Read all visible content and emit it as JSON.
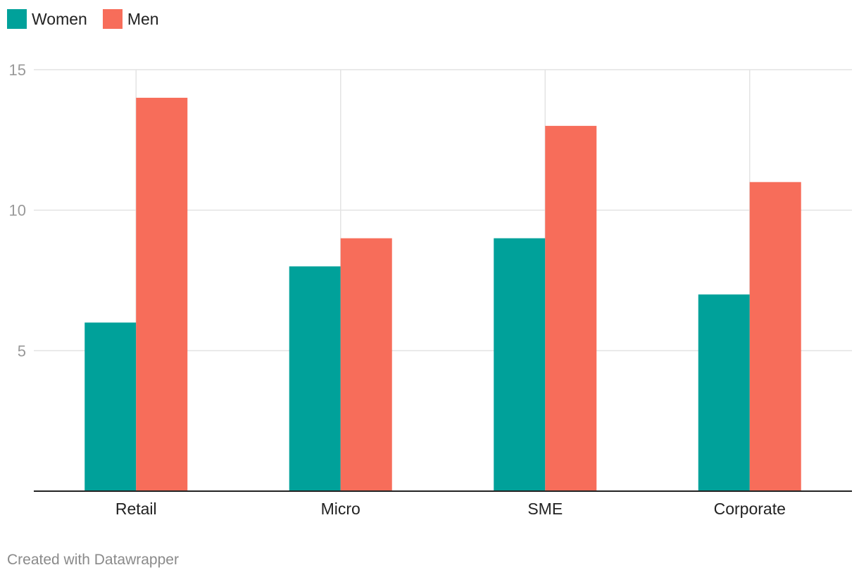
{
  "chart_data": {
    "type": "bar",
    "categories": [
      "Retail",
      "Micro",
      "SME",
      "Corporate"
    ],
    "series": [
      {
        "name": "Women",
        "values": [
          6,
          8,
          9,
          7
        ],
        "color": "#00a19a"
      },
      {
        "name": "Men",
        "values": [
          14,
          9,
          13,
          11
        ],
        "color": "#f76d5a"
      }
    ],
    "y_ticks": [
      5,
      10,
      15
    ],
    "ylim": [
      0,
      15
    ],
    "title": "",
    "xlabel": "",
    "ylabel": "",
    "grid": true,
    "legend_position": "top-left"
  },
  "legend": {
    "women_label": "Women",
    "men_label": "Men",
    "women_color": "#00a19a",
    "men_color": "#f76d5a"
  },
  "footer": {
    "credit": "Created with Datawrapper"
  }
}
